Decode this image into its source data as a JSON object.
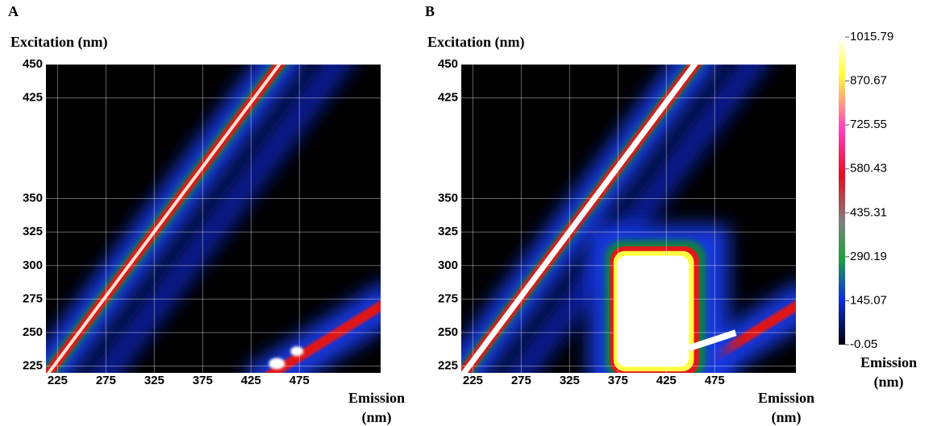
{
  "chart_data": [
    {
      "type": "heatmap",
      "panel": "A",
      "ylabel": "Excitation (nm)",
      "xlabel": "Emission (nm)",
      "xlim": [
        213,
        559
      ],
      "ylim": [
        220,
        450
      ],
      "xticks": [
        225,
        275,
        325,
        375,
        425,
        475
      ],
      "yticks": [
        225,
        250,
        275,
        300,
        325,
        350,
        425,
        450
      ],
      "grid": true
    },
    {
      "type": "heatmap",
      "panel": "B",
      "ylabel": "Excitation (nm)",
      "xlabel": "Emission (nm)",
      "xlim": [
        213,
        559
      ],
      "ylim": [
        220,
        450
      ],
      "xticks": [
        225,
        275,
        325,
        375,
        425,
        475
      ],
      "yticks": [
        225,
        250,
        275,
        300,
        325,
        350,
        425,
        450
      ],
      "grid": true
    }
  ],
  "colorbar": {
    "label": "Emission (nm)",
    "lim": [
      -0.05,
      1015.79
    ],
    "ticks": [
      1015.79,
      870.67,
      725.55,
      580.43,
      435.31,
      290.19,
      145.07,
      -0.05
    ]
  }
}
